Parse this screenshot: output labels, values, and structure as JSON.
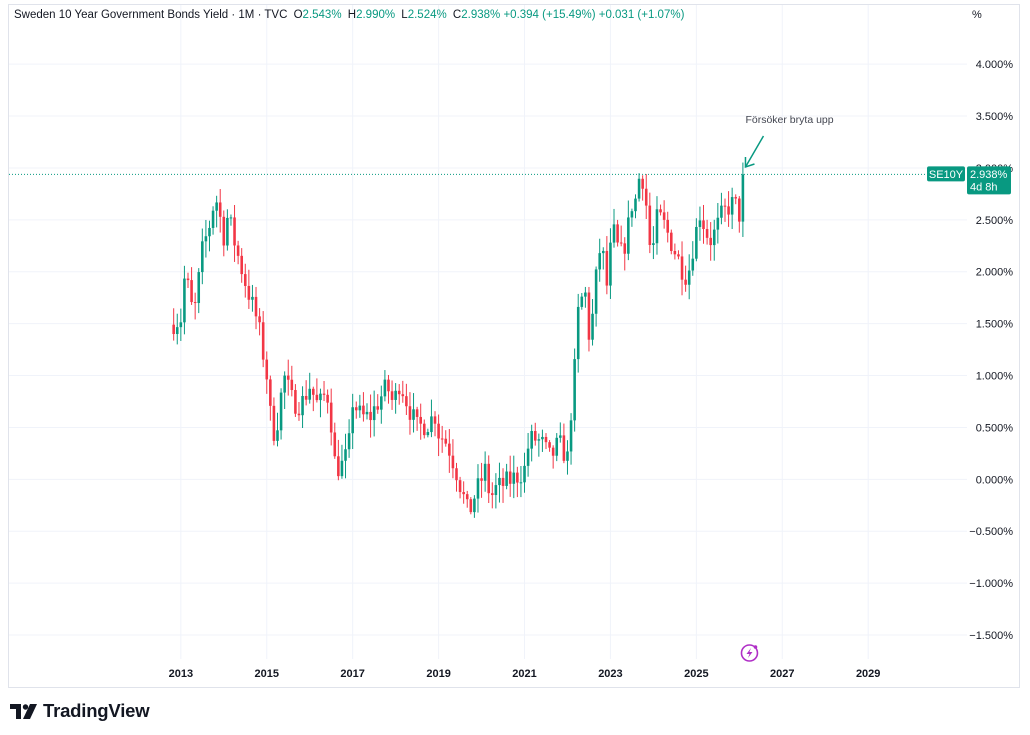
{
  "header": {
    "title": "Sweden 10 Year Government Bonds Yield · 1M · TVC",
    "open_label": "O",
    "open_value": "2.543%",
    "high_label": "H",
    "high_value": "2.990%",
    "low_label": "L",
    "low_value": "2.524%",
    "close_label": "C",
    "close_value": "2.938%",
    "change_value": "+0.394 (+15.49%)",
    "change2_value": "+0.031 (+1.07%)"
  },
  "axis": {
    "unit_label": "%"
  },
  "price_badge": {
    "symbol": "SE10Y",
    "price": "2.938%",
    "countdown": "4d 8h"
  },
  "annotation": {
    "text": "Försöker bryta upp"
  },
  "branding": {
    "logo_text": "TradingView"
  },
  "colors": {
    "up": "#089981",
    "down": "#f23645",
    "grid": "#f0f3fa",
    "annotation": "#089981"
  },
  "icons": {
    "flash_icon": "lightning-bolt",
    "logo_icon": "tradingview-logo"
  },
  "chart_data": {
    "type": "candlestick",
    "interval": "1M",
    "y_tick_labels": [
      "4.000%",
      "3.500%",
      "3.000%",
      "2.500%",
      "2.000%",
      "1.500%",
      "1.000%",
      "0.500%",
      "0.000%",
      "−0.500%",
      "−1.000%",
      "−1.500%"
    ],
    "y_ticks": [
      4.0,
      3.5,
      3.0,
      2.5,
      2.0,
      1.5,
      1.0,
      0.5,
      0.0,
      -0.5,
      -1.0,
      -1.5
    ],
    "x_tick_labels": [
      "2013",
      "2015",
      "2017",
      "2019",
      "2021",
      "2023",
      "2025",
      "2027",
      "2029"
    ],
    "x_ticks": [
      2013,
      2015,
      2017,
      2019,
      2021,
      2023,
      2025,
      2027,
      2029
    ],
    "x_range": [
      2009.0,
      2031.3
    ],
    "y_range": [
      -2.02,
      4.57
    ],
    "last_price": 2.938,
    "annotation_target": {
      "x": 2026.12,
      "y": 2.99
    },
    "path": [
      [
        2012.75,
        1.49
      ],
      [
        2013.0,
        1.55
      ],
      [
        2013.1,
        2.0
      ],
      [
        2013.3,
        1.55
      ],
      [
        2013.5,
        2.2
      ],
      [
        2013.7,
        2.5
      ],
      [
        2013.8,
        2.75
      ],
      [
        2014.0,
        2.35
      ],
      [
        2014.1,
        2.55
      ],
      [
        2014.3,
        2.2
      ],
      [
        2014.5,
        1.9
      ],
      [
        2014.8,
        1.5
      ],
      [
        2015.0,
        1.0
      ],
      [
        2015.1,
        0.55
      ],
      [
        2015.2,
        0.42
      ],
      [
        2015.4,
        1.0
      ],
      [
        2015.6,
        0.75
      ],
      [
        2015.8,
        0.72
      ],
      [
        2016.0,
        0.9
      ],
      [
        2016.2,
        0.7
      ],
      [
        2016.4,
        0.85
      ],
      [
        2016.5,
        0.55
      ],
      [
        2016.6,
        0.1
      ],
      [
        2016.8,
        0.15
      ],
      [
        2016.95,
        0.4
      ],
      [
        2017.0,
        0.75
      ],
      [
        2017.2,
        0.6
      ],
      [
        2017.4,
        0.6
      ],
      [
        2017.6,
        0.75
      ],
      [
        2017.8,
        0.9
      ],
      [
        2017.95,
        0.72
      ],
      [
        2018.1,
        0.95
      ],
      [
        2018.3,
        0.7
      ],
      [
        2018.5,
        0.5
      ],
      [
        2018.8,
        0.55
      ],
      [
        2018.9,
        0.65
      ],
      [
        2019.0,
        0.45
      ],
      [
        2019.2,
        0.35
      ],
      [
        2019.4,
        0.1
      ],
      [
        2019.6,
        -0.2
      ],
      [
        2019.7,
        -0.35
      ],
      [
        2019.8,
        -0.2
      ],
      [
        2019.9,
        -0.1
      ],
      [
        2020.1,
        0.1
      ],
      [
        2020.2,
        -0.2
      ],
      [
        2020.3,
        -0.1
      ],
      [
        2020.5,
        -0.05
      ],
      [
        2020.7,
        0.0
      ],
      [
        2020.9,
        0.05
      ],
      [
        2021.0,
        0.1
      ],
      [
        2021.1,
        0.35
      ],
      [
        2021.2,
        0.4
      ],
      [
        2021.4,
        0.35
      ],
      [
        2021.6,
        0.2
      ],
      [
        2021.8,
        0.35
      ],
      [
        2022.0,
        0.2
      ],
      [
        2022.05,
        0.5
      ],
      [
        2022.15,
        0.95
      ],
      [
        2022.25,
        1.6
      ],
      [
        2022.4,
        1.85
      ],
      [
        2022.5,
        1.4
      ],
      [
        2022.6,
        1.6
      ],
      [
        2022.7,
        2.1
      ],
      [
        2022.8,
        2.3
      ],
      [
        2022.9,
        1.8
      ],
      [
        2023.0,
        2.2
      ],
      [
        2023.1,
        2.4
      ],
      [
        2023.2,
        2.15
      ],
      [
        2023.3,
        2.2
      ],
      [
        2023.4,
        2.4
      ],
      [
        2023.5,
        2.65
      ],
      [
        2023.6,
        2.7
      ],
      [
        2023.7,
        3.0
      ],
      [
        2023.8,
        2.8
      ],
      [
        2023.95,
        2.1
      ],
      [
        2024.1,
        2.55
      ],
      [
        2024.25,
        2.45
      ],
      [
        2024.4,
        2.3
      ],
      [
        2024.55,
        2.15
      ],
      [
        2024.7,
        2.0
      ],
      [
        2024.8,
        1.95
      ],
      [
        2024.9,
        2.2
      ],
      [
        2025.0,
        2.4
      ],
      [
        2025.1,
        2.6
      ],
      [
        2025.2,
        2.4
      ],
      [
        2025.35,
        2.3
      ],
      [
        2025.5,
        2.45
      ],
      [
        2025.6,
        2.55
      ],
      [
        2025.7,
        2.6
      ],
      [
        2025.8,
        2.65
      ],
      [
        2025.9,
        2.65
      ],
      [
        2026.0,
        2.55
      ],
      [
        2026.12,
        2.938
      ]
    ]
  }
}
